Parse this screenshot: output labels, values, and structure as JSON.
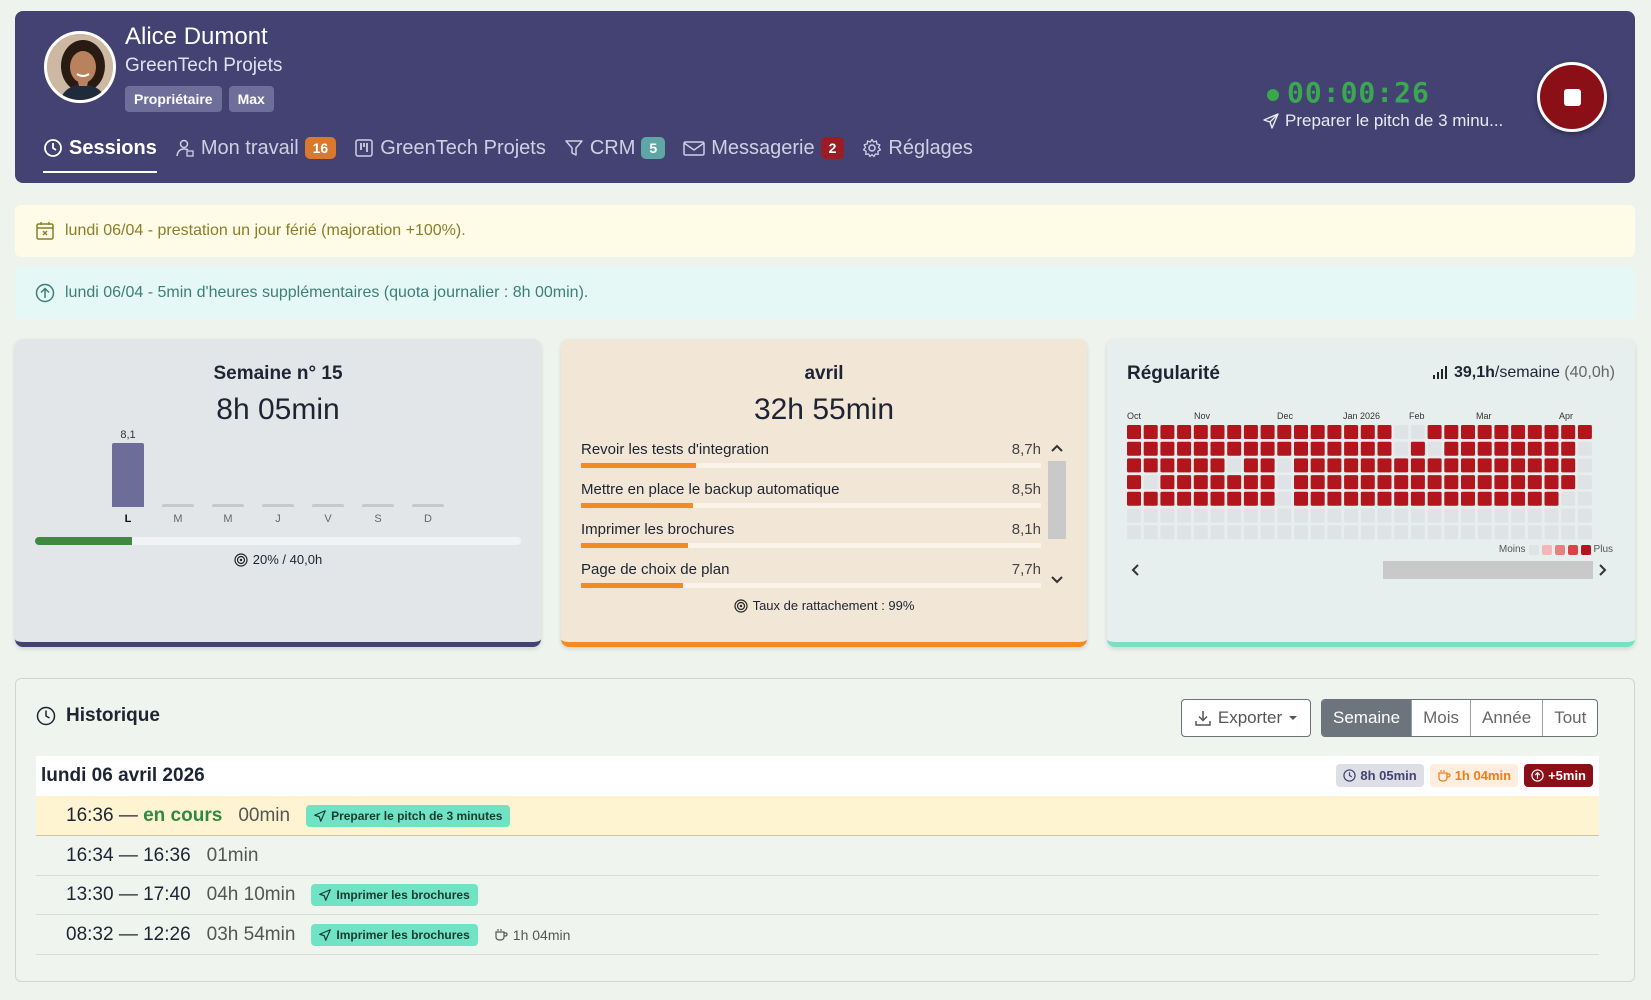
{
  "header": {
    "user_name": "Alice Dumont",
    "organization": "GreenTech Projets",
    "badges": [
      "Propriétaire",
      "Max"
    ],
    "nav": [
      {
        "label": "Sessions",
        "icon": "clock-icon",
        "active": true
      },
      {
        "label": "Mon travail",
        "icon": "user-task-icon",
        "count": "16"
      },
      {
        "label": "GreenTech Projets",
        "icon": "kanban-icon"
      },
      {
        "label": "CRM",
        "icon": "funnel-icon",
        "count": "5"
      },
      {
        "label": "Messagerie",
        "icon": "envelope-icon",
        "count": "2"
      },
      {
        "label": "Réglages",
        "icon": "gear-icon"
      }
    ],
    "timer": "00:00:26",
    "timer_task": "Preparer le pitch de 3 minu...",
    "colors": {
      "header_bg": "#434272",
      "timer": "#3aa850",
      "stop": "#8a0f16"
    }
  },
  "alerts": [
    {
      "type": "holiday",
      "icon": "calendar-x-icon",
      "text": "lundi 06/04 - prestation un jour férié (majoration +100%)."
    },
    {
      "type": "overtime",
      "icon": "arrow-up-circle-icon",
      "text": "lundi 06/04 - 5min d'heures supplémentaires (quota journalier : 8h 00min)."
    }
  ],
  "week_card": {
    "title": "Semaine n° 15",
    "total": "8h 05min",
    "days": [
      {
        "label": "L",
        "value": 8.1,
        "value_label": "8,1"
      },
      {
        "label": "M",
        "value": 0
      },
      {
        "label": "M",
        "value": 0
      },
      {
        "label": "J",
        "value": 0
      },
      {
        "label": "V",
        "value": 0
      },
      {
        "label": "S",
        "value": 0
      },
      {
        "label": "D",
        "value": 0
      }
    ],
    "progress": 0.2,
    "progress_label": "20% / 40,0h"
  },
  "month_card": {
    "title": "avril",
    "total": "32h 55min",
    "tasks": [
      {
        "name": "Revoir les tests d'integration",
        "hours": "8,7h",
        "value": 8.7
      },
      {
        "name": "Mettre en place le backup automatique",
        "hours": "8,5h",
        "value": 8.5
      },
      {
        "name": "Imprimer les brochures",
        "hours": "8,1h",
        "value": 8.1
      },
      {
        "name": "Page de choix de plan",
        "hours": "7,7h",
        "value": 7.7
      }
    ],
    "attachment_rate": "Taux de rattachement : 99%"
  },
  "regularity_card": {
    "title": "Régularité",
    "weekly_avg": "39,1h",
    "weekly_suffix": "/semaine",
    "weekly_target": "(40,0h)",
    "months": [
      "Oct",
      "Nov",
      "Dec",
      "Jan 2026",
      "Feb",
      "Mar",
      "Apr"
    ],
    "legend_less": "Moins",
    "legend_more": "Plus",
    "colors": [
      "#dfe3e6",
      "#f3b7b7",
      "#ea7f7f",
      "#d94545",
      "#b3151d"
    ]
  },
  "history": {
    "title": "Historique",
    "export_label": "Exporter",
    "periods": [
      {
        "label": "Semaine",
        "active": true
      },
      {
        "label": "Mois"
      },
      {
        "label": "Année"
      },
      {
        "label": "Tout"
      }
    ],
    "day": {
      "label": "lundi 06 avril 2026",
      "total": "8h 05min",
      "pause": "1h 04min",
      "overtime": "+5min"
    },
    "sessions": [
      {
        "range": "16:36 — ",
        "live": "en cours",
        "duration": "00min",
        "task": "Preparer le pitch de 3 minutes",
        "current": true
      },
      {
        "range": "16:34 — 16:36",
        "duration": "01min"
      },
      {
        "range": "13:30 — 17:40",
        "duration": "04h 10min",
        "task": "Imprimer les brochures"
      },
      {
        "range": "08:32 — 12:26",
        "duration": "03h 54min",
        "task": "Imprimer les brochures",
        "pause": "1h 04min"
      }
    ]
  }
}
